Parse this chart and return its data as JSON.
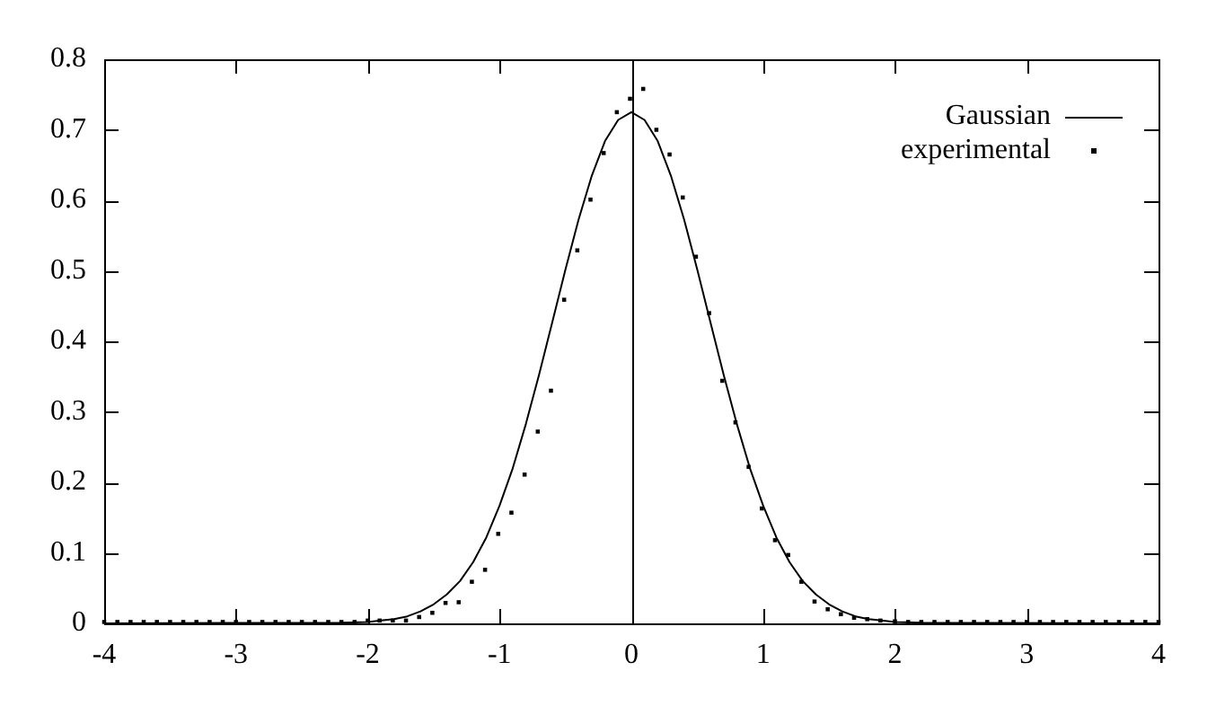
{
  "chart_data": {
    "type": "line",
    "xlim": [
      -4,
      4
    ],
    "xticks": [
      -4,
      -3,
      -2,
      -1,
      0,
      1,
      2,
      3,
      4
    ],
    "ylim": [
      0,
      0.8
    ],
    "yticks": [
      0,
      0.1,
      0.2,
      0.3,
      0.4,
      0.5,
      0.6,
      0.7,
      0.8
    ],
    "grid": false,
    "legend": "top right",
    "ref_lines": [
      {
        "axis": "x",
        "value": 0,
        "color": "#000000"
      }
    ],
    "series": [
      {
        "name": "Gaussian",
        "color": "#000000",
        "marker": "none",
        "line_style": "solid",
        "x": [
          -4,
          -2.2,
          -2.0,
          -1.9,
          -1.8,
          -1.7,
          -1.6,
          -1.5,
          -1.4,
          -1.3,
          -1.2,
          -1.1,
          -1.0,
          -0.9,
          -0.8,
          -0.7,
          -0.6,
          -0.5,
          -0.4,
          -0.3,
          -0.2,
          -0.1,
          0,
          0.1,
          0.2,
          0.3,
          0.4,
          0.5,
          0.6,
          0.7,
          0.8,
          0.9,
          1.0,
          1.1,
          1.2,
          1.3,
          1.4,
          1.5,
          1.6,
          1.7,
          1.8,
          1.9,
          2.0,
          2.2,
          4
        ],
        "values": [
          0,
          0.001,
          0.002,
          0.004,
          0.006,
          0.01,
          0.017,
          0.027,
          0.041,
          0.06,
          0.087,
          0.122,
          0.167,
          0.22,
          0.283,
          0.353,
          0.427,
          0.502,
          0.573,
          0.635,
          0.684,
          0.714,
          0.725,
          0.714,
          0.684,
          0.635,
          0.573,
          0.502,
          0.427,
          0.353,
          0.283,
          0.22,
          0.167,
          0.122,
          0.087,
          0.06,
          0.041,
          0.027,
          0.017,
          0.01,
          0.006,
          0.004,
          0.002,
          0.001,
          0
        ]
      },
      {
        "name": "experimental",
        "type": "scatter",
        "color": "#000000",
        "marker": "square",
        "x": [
          -4.0,
          -3.9,
          -3.8,
          -3.7,
          -3.6,
          -3.5,
          -3.4,
          -3.3,
          -3.2,
          -3.1,
          -3.0,
          -2.9,
          -2.8,
          -2.7,
          -2.6,
          -2.5,
          -2.4,
          -2.3,
          -2.2,
          -2.1,
          -2.0,
          -1.91,
          -1.81,
          -1.71,
          -1.61,
          -1.51,
          -1.41,
          -1.31,
          -1.21,
          -1.11,
          -1.01,
          -0.91,
          -0.81,
          -0.71,
          -0.61,
          -0.51,
          -0.41,
          -0.31,
          -0.21,
          -0.11,
          -0.01,
          0.09,
          0.19,
          0.29,
          0.39,
          0.49,
          0.59,
          0.69,
          0.79,
          0.89,
          0.99,
          1.09,
          1.19,
          1.29,
          1.39,
          1.49,
          1.59,
          1.69,
          1.79,
          1.89,
          2.0,
          2.1,
          2.2,
          2.3,
          2.4,
          2.5,
          2.6,
          2.7,
          2.8,
          2.9,
          3.0,
          3.1,
          3.2,
          3.3,
          3.4,
          3.5,
          3.6,
          3.7,
          3.8,
          3.9,
          4.0
        ],
        "values": [
          0.002,
          0.002,
          0.002,
          0.002,
          0.002,
          0.002,
          0.002,
          0.002,
          0.002,
          0.002,
          0.002,
          0.002,
          0.002,
          0.002,
          0.002,
          0.002,
          0.002,
          0.002,
          0.002,
          0.002,
          0.004,
          0.004,
          0.004,
          0.004,
          0.009,
          0.015,
          0.029,
          0.03,
          0.059,
          0.076,
          0.127,
          0.157,
          0.211,
          0.272,
          0.33,
          0.459,
          0.529,
          0.601,
          0.667,
          0.725,
          0.744,
          0.758,
          0.7,
          0.665,
          0.604,
          0.52,
          0.44,
          0.344,
          0.285,
          0.222,
          0.163,
          0.118,
          0.097,
          0.059,
          0.031,
          0.02,
          0.013,
          0.008,
          0.006,
          0.004,
          0.003,
          0.002,
          0.002,
          0.002,
          0.002,
          0.002,
          0.002,
          0.002,
          0.002,
          0.002,
          0.002,
          0.002,
          0.002,
          0.002,
          0.002,
          0.002,
          0.002,
          0.002,
          0.002,
          0.002,
          0.002
        ]
      }
    ]
  }
}
